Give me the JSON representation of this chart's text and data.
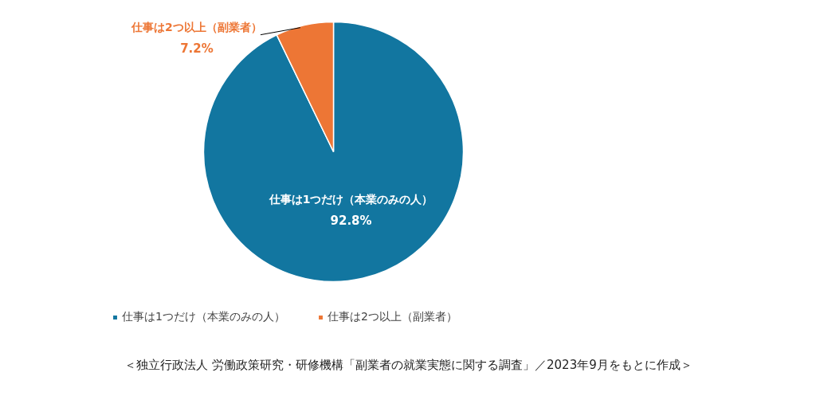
{
  "chart_data": {
    "type": "pie",
    "categories": [
      "仕事は1つだけ（本業のみの人）",
      "仕事は2つ以上（副業者）"
    ],
    "values": [
      92.8,
      7.2
    ],
    "colors": [
      "#1276a0",
      "#ed7635"
    ],
    "value_labels": [
      "92.8%",
      "7.2%"
    ],
    "legend": "bottom",
    "annotations": [
      "＜独立行政法人 労働政策研究・研修機構「副業者の就業実態に関する調査」／2023年9月をもとに作成＞"
    ]
  }
}
